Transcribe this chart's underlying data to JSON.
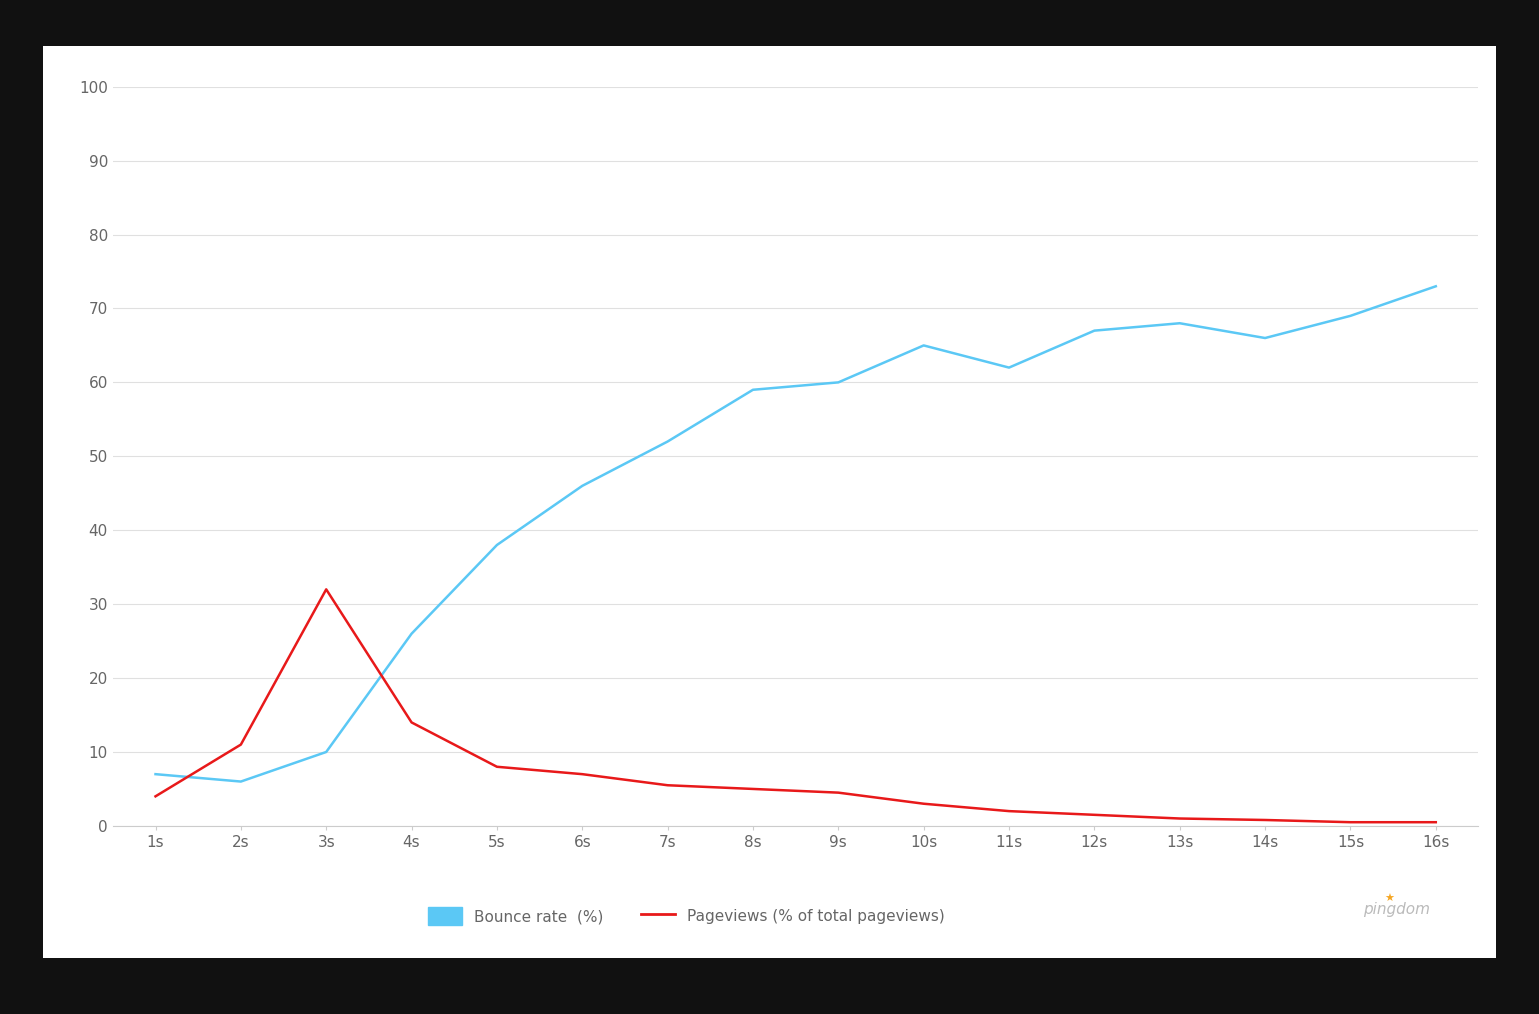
{
  "x_labels": [
    "1s",
    "2s",
    "3s",
    "4s",
    "5s",
    "6s",
    "7s",
    "8s",
    "9s",
    "10s",
    "11s",
    "12s",
    "13s",
    "14s",
    "15s",
    "16s"
  ],
  "x_values": [
    1,
    2,
    3,
    4,
    5,
    6,
    7,
    8,
    9,
    10,
    11,
    12,
    13,
    14,
    15,
    16
  ],
  "bounce_rate": [
    7,
    6,
    10,
    26,
    38,
    46,
    52,
    59,
    60,
    65,
    62,
    67,
    68,
    66,
    69,
    73
  ],
  "pageviews": [
    4,
    11,
    32,
    14,
    8,
    7,
    5.5,
    5.0,
    4.5,
    3.0,
    2.0,
    1.5,
    1.0,
    0.8,
    0.5,
    0.5
  ],
  "bounce_color": "#5bc8f5",
  "pageviews_color": "#e8191a",
  "ylim": [
    0,
    100
  ],
  "yticks": [
    0,
    10,
    20,
    30,
    40,
    50,
    60,
    70,
    80,
    90,
    100
  ],
  "background_color": "#ffffff",
  "outer_background": "#111111",
  "legend_bounce_label": "Bounce rate  (%)",
  "legend_pageviews_label": "Pageviews (% of total pageviews)",
  "grid_color": "#e0e0e0",
  "axis_color": "#cccccc",
  "tick_color": "#666666",
  "tick_fontsize": 11,
  "legend_fontsize": 11,
  "line_width": 1.8,
  "pingdom_color": "#aaaaaa"
}
